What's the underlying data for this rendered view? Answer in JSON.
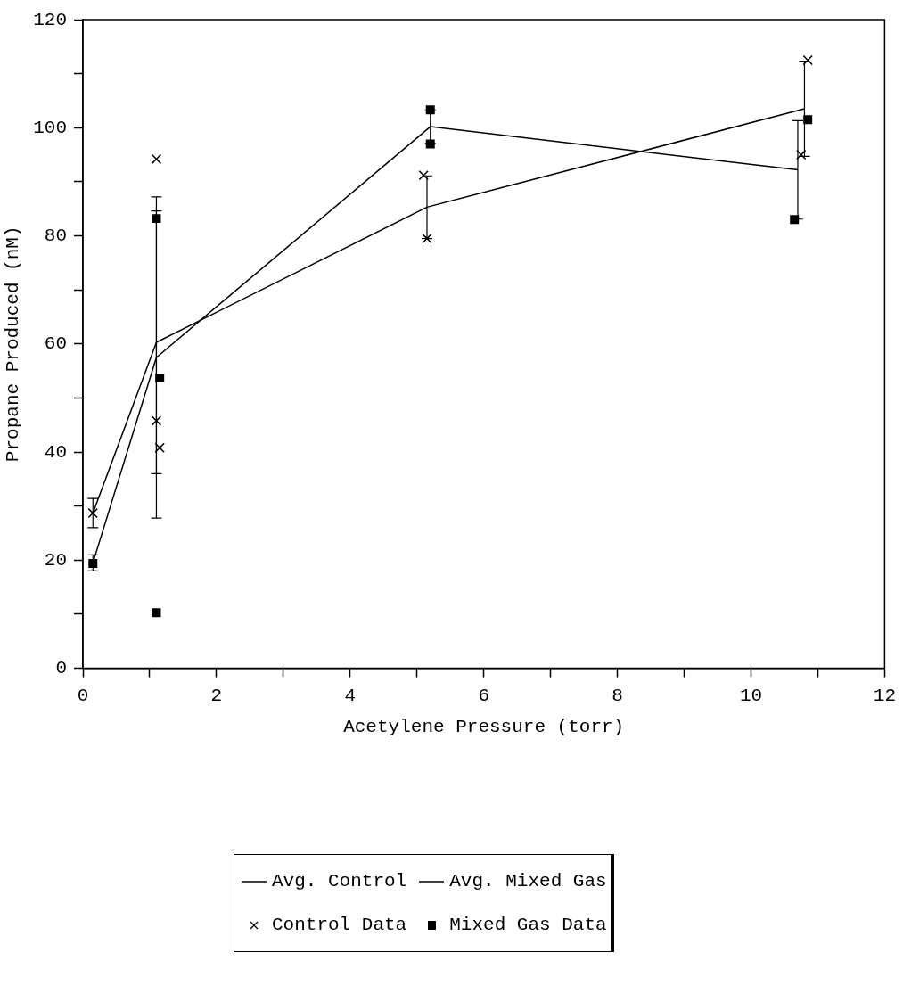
{
  "chart_data": {
    "type": "scatter",
    "xlabel": "Acetylene Pressure (torr)",
    "ylabel": "Propane Produced (nM)",
    "xlim": [
      0,
      12
    ],
    "ylim": [
      0,
      120
    ],
    "xticks": [
      0,
      {
        "value": 1,
        "label": null
      },
      2,
      {
        "value": 3,
        "label": null
      },
      4,
      {
        "value": 5,
        "label": null
      },
      6,
      {
        "value": 7,
        "label": null
      },
      8,
      {
        "value": 9,
        "label": null
      },
      10,
      {
        "value": 11,
        "label": null
      },
      12
    ],
    "yticks": [
      0,
      {
        "value": 10,
        "label": null
      },
      20,
      {
        "value": 30,
        "label": null
      },
      40,
      {
        "value": 50,
        "label": null
      },
      60,
      {
        "value": 70,
        "label": null
      },
      80,
      {
        "value": 90,
        "label": null
      },
      100,
      {
        "value": 110,
        "label": null
      },
      120
    ],
    "grid": false,
    "legend": "bottom",
    "series": [
      {
        "name": "Avg. Control",
        "type": "line",
        "color": "#000000",
        "marker": "none",
        "line_style": "solid",
        "x": [
          0.15,
          1.1,
          5.15,
          10.8
        ],
        "values": [
          28.7,
          60.3,
          85.3,
          103.5
        ],
        "errors": [
          2.7,
          24.3,
          5.8,
          8.8
        ]
      },
      {
        "name": "Avg. Mixed Gas",
        "type": "line",
        "color": "#000000",
        "marker": "none",
        "line_style": "solid",
        "x": [
          0.15,
          1.1,
          5.2,
          10.7
        ],
        "values": [
          19.5,
          57.5,
          100.2,
          92.2
        ],
        "errors": [
          1.5,
          29.7,
          3.1,
          9.1
        ]
      },
      {
        "name": "Control Data",
        "color": "#000000",
        "marker": "cross",
        "x": [
          0.15,
          1.1,
          1.1,
          1.15,
          5.1,
          5.15,
          10.75,
          10.85
        ],
        "values": [
          28.7,
          94.2,
          45.8,
          40.8,
          91.2,
          79.5,
          95,
          112.5
        ]
      },
      {
        "name": "Mixed Gas Data",
        "color": "#000000",
        "marker": "square",
        "x": [
          0.15,
          1.1,
          1.15,
          1.1,
          5.2,
          5.2,
          10.65,
          10.85
        ],
        "values": [
          19.4,
          83.2,
          53.7,
          10.3,
          103.3,
          97,
          83,
          101.5
        ]
      }
    ]
  }
}
